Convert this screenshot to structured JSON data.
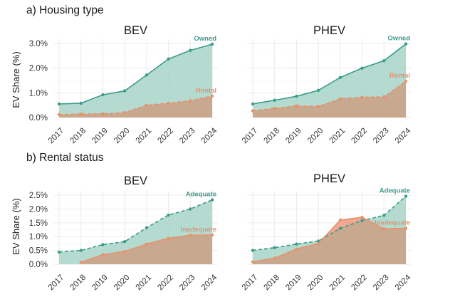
{
  "colors": {
    "teal": "#3a9d8c",
    "teal_fill": "#a8d5c9",
    "orange": "#e8916a",
    "orange_fill": "#c9a890",
    "orange_fill_over": "#f0a088",
    "grid": "#ebebeb",
    "panel_bg": "#ffffff",
    "text": "#1a1a1a",
    "tick": "#333333"
  },
  "y_axis_label": "EV Share (%)",
  "chart_data": [
    {
      "section_title": "a) Housing type",
      "type": "area",
      "title": "BEV",
      "ylabel": "EV Share (%)",
      "ylim": [
        0,
        3.0
      ],
      "yticks": [
        0,
        1,
        2,
        3
      ],
      "ytick_labels": [
        "0.0%",
        "1.0%",
        "2.0%",
        "3.0%"
      ],
      "x": [
        "2017",
        "2018",
        "2019",
        "2020",
        "2021",
        "2022",
        "2023",
        "2024"
      ],
      "series": [
        {
          "name": "Owned",
          "label": "Owned",
          "color": "teal",
          "dash": false,
          "x": [
            "2017",
            "2018",
            "2019",
            "2020",
            "2021",
            "2022",
            "2023",
            "2024"
          ],
          "values": [
            0.55,
            0.58,
            0.92,
            1.08,
            1.72,
            2.37,
            2.72,
            2.97
          ]
        },
        {
          "name": "Rental",
          "label": "Rental",
          "color": "orange",
          "dash": true,
          "x": [
            "2017",
            "2018",
            "2019",
            "2020",
            "2021",
            "2022",
            "2023",
            "2024"
          ],
          "values": [
            0.12,
            0.14,
            0.15,
            0.2,
            0.5,
            0.58,
            0.68,
            0.87
          ]
        }
      ]
    },
    {
      "section_title": "",
      "type": "area",
      "title": "PHEV",
      "ylim": [
        0,
        3.0
      ],
      "yticks": [
        0,
        1,
        2,
        3
      ],
      "x": [
        "2017",
        "2018",
        "2019",
        "2020",
        "2021",
        "2022",
        "2023",
        "2024"
      ],
      "series": [
        {
          "name": "Owned",
          "label": "Owned",
          "color": "teal",
          "dash": false,
          "x": [
            "2017",
            "2018",
            "2019",
            "2020",
            "2021",
            "2022",
            "2023",
            "2024"
          ],
          "values": [
            0.55,
            0.7,
            0.86,
            1.1,
            1.62,
            2.0,
            2.3,
            2.98
          ]
        },
        {
          "name": "Rental",
          "label": "Rental",
          "color": "orange",
          "dash": true,
          "x": [
            "2017",
            "2018",
            "2019",
            "2020",
            "2021",
            "2022",
            "2023",
            "2024"
          ],
          "values": [
            0.27,
            0.37,
            0.47,
            0.45,
            0.76,
            0.82,
            0.84,
            1.47
          ]
        }
      ]
    },
    {
      "section_title": "b) Rental status",
      "type": "area",
      "title": "BEV",
      "ylabel": "EV Share (%)",
      "ylim": [
        0,
        2.5
      ],
      "yticks": [
        0,
        0.5,
        1.0,
        1.5,
        2.0,
        2.5
      ],
      "ytick_labels": [
        "0.0%",
        "0.5%",
        "1.0%",
        "1.5%",
        "2.0%",
        "2.5%"
      ],
      "x": [
        "2017",
        "2018",
        "2019",
        "2020",
        "2021",
        "2022",
        "2023",
        "2024"
      ],
      "series": [
        {
          "name": "Adequate",
          "label": "Adequate",
          "color": "teal",
          "dash": true,
          "x": [
            "2017",
            "2018",
            "2019",
            "2020",
            "2021",
            "2022",
            "2023",
            "2024"
          ],
          "values": [
            0.44,
            0.5,
            0.71,
            0.82,
            1.32,
            1.78,
            2.0,
            2.33
          ]
        },
        {
          "name": "Inadequate",
          "label": "Inadequate",
          "color": "orange",
          "dash": false,
          "x": [
            "2018",
            "2019",
            "2020",
            "2021",
            "2022",
            "2023",
            "2024"
          ],
          "values": [
            0.07,
            0.35,
            0.46,
            0.73,
            0.94,
            1.05,
            1.06
          ]
        }
      ]
    },
    {
      "section_title": "",
      "type": "area",
      "title": "PHEV",
      "ylim": [
        0,
        2.5
      ],
      "yticks": [
        0,
        0.5,
        1.0,
        1.5,
        2.0,
        2.5
      ],
      "x": [
        "2017",
        "2018",
        "2019",
        "2020",
        "2021",
        "2022",
        "2023",
        "2024"
      ],
      "series": [
        {
          "name": "Adequate",
          "label": "Adequate",
          "color": "teal",
          "dash": true,
          "x": [
            "2017",
            "2018",
            "2019",
            "2020",
            "2021",
            "2022",
            "2023",
            "2024"
          ],
          "values": [
            0.5,
            0.6,
            0.73,
            0.84,
            1.3,
            1.58,
            1.77,
            2.46
          ]
        },
        {
          "name": "Inadequate",
          "label": "Inadequate",
          "color": "orange",
          "dash": false,
          "x": [
            "2017",
            "2018",
            "2019",
            "2020",
            "2021",
            "2022",
            "2023",
            "2024"
          ],
          "values": [
            0.09,
            0.22,
            0.55,
            0.75,
            1.6,
            1.7,
            1.28,
            1.3
          ]
        }
      ]
    }
  ]
}
